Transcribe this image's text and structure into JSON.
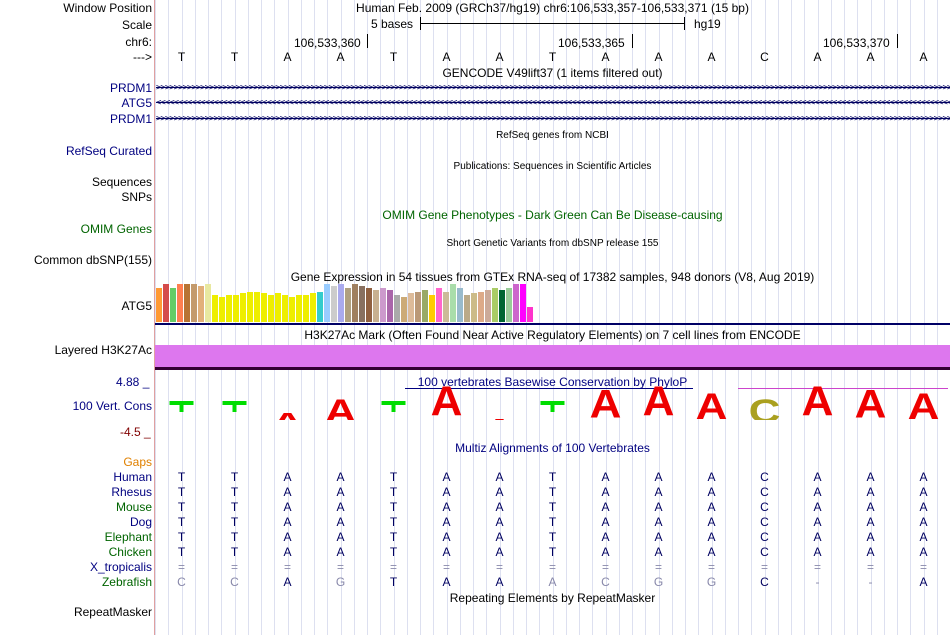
{
  "header": {
    "position_label": "Window Position",
    "assembly_text": "Human Feb. 2009 (GRCh37/hg19)   chr6:106,533,357-106,533,371 (15 bp)",
    "scale_label": "Scale",
    "scale_text": "5 bases",
    "scale_db": "hg19",
    "chrom_label": "chr6:",
    "coords": [
      "106,533,360",
      "106,533,365",
      "106,533,370"
    ],
    "strand_label": "--->"
  },
  "sequence": [
    "T",
    "T",
    "A",
    "A",
    "T",
    "A",
    "A",
    "T",
    "A",
    "A",
    "A",
    "C",
    "A",
    "A",
    "A"
  ],
  "tracks": {
    "gencode_title": "GENCODE V49lift37 (1 items filtered out)",
    "gencode_items": [
      "PRDM1",
      "ATG5",
      "PRDM1"
    ],
    "refseq_title": "RefSeq genes from NCBI",
    "refseq_label": "RefSeq Curated",
    "pubs_title": "Publications: Sequences in Scientific Articles",
    "pubs_label": "Sequences",
    "snps_label": "SNPs",
    "omim_title": "OMIM Gene Phenotypes - Dark Green Can Be Disease-causing",
    "omim_label": "OMIM Genes",
    "dbsnp_title": "Short Genetic Variants from dbSNP release 155",
    "dbsnp_label": "Common dbSNP(155)",
    "gtex_title": "Gene Expression in 54 tissues from GTEx RNA-seq of 17382 samples, 948 donors (V8, Aug 2019)",
    "gtex_label": "ATG5",
    "h3k_title": "H3K27Ac Mark (Often Found Near Active Regulatory Elements) on 7 cell lines from ENCODE",
    "h3k_label": "Layered H3K27Ac",
    "cons_title": "100 vertebrates Basewise Conservation by PhyloP",
    "cons_label": "100 Vert. Cons",
    "cons_max": "4.88 _",
    "cons_min": "-4.5 _",
    "multiz_title": "Multiz Alignments of 100 Vertebrates",
    "gaps_label": "Gaps",
    "repeat_title": "Repeating Elements by RepeatMasker",
    "repeat_label": "RepeatMasker"
  },
  "gtex_values": [
    0.9,
    1,
    0.9,
    1,
    1,
    1,
    0.95,
    1,
    0.7,
    0.65,
    0.7,
    0.7,
    0.75,
    0.8,
    0.8,
    0.75,
    0.7,
    0.75,
    0.7,
    0.65,
    0.7,
    0.7,
    0.75,
    0.8,
    1,
    0.95,
    1,
    0.9,
    1,
    0.95,
    0.9,
    0.85,
    0.9,
    0.85,
    0.7,
    0.65,
    0.75,
    0.8,
    0.85,
    0.7,
    0.9,
    0.8,
    1,
    0.9,
    0.7,
    0.75,
    0.8,
    0.85,
    0.9,
    0.85,
    0.9,
    1,
    1,
    0.4
  ],
  "gtex_colors": [
    "#ff9933",
    "#d44b4b",
    "#66cc66",
    "#ff7f50",
    "#b87333",
    "#c49a6c",
    "#e2b07a",
    "#e8e8a0",
    "#eeee00",
    "#eeee00",
    "#eeee00",
    "#eeee00",
    "#eeee00",
    "#eeee00",
    "#eeee00",
    "#eeee00",
    "#eeee00",
    "#eeee00",
    "#eeee00",
    "#eeee00",
    "#eeee00",
    "#eeee00",
    "#eeee00",
    "#33cccc",
    "#99ccff",
    "#cccccc",
    "#aaaaee",
    "#b0a080",
    "#a08060",
    "#887060",
    "#906040",
    "#c8b090",
    "#cc99cc",
    "#aa66aa",
    "#aaaaaa",
    "#ccaa77",
    "#ddbb99",
    "#bb9977",
    "#99aa66",
    "#ffcc00",
    "#ff66cc",
    "#ccbb99",
    "#aaddaa",
    "#99bbcc",
    "#bbaa88",
    "#ccbb88",
    "#ddaa88",
    "#ccaa99",
    "#aacc66",
    "#006633",
    "#99cc99",
    "#cc66cc",
    "#ff00ff",
    "#ff33cc"
  ],
  "cons_heights": [
    0.15,
    0.15,
    0.55,
    0.75,
    0.15,
    0.95,
    0.45,
    0.15,
    0.9,
    0.95,
    0.85,
    0.75,
    0.95,
    0.9,
    0.85
  ],
  "species": [
    {
      "name": "Human",
      "bases": [
        "T",
        "T",
        "A",
        "A",
        "T",
        "A",
        "A",
        "T",
        "A",
        "A",
        "A",
        "C",
        "A",
        "A",
        "A"
      ]
    },
    {
      "name": "Rhesus",
      "bases": [
        "T",
        "T",
        "A",
        "A",
        "T",
        "A",
        "A",
        "T",
        "A",
        "A",
        "A",
        "C",
        "A",
        "A",
        "A"
      ]
    },
    {
      "name": "Mouse",
      "bases": [
        "T",
        "T",
        "A",
        "A",
        "T",
        "A",
        "A",
        "T",
        "A",
        "A",
        "A",
        "C",
        "A",
        "A",
        "A"
      ]
    },
    {
      "name": "Dog",
      "bases": [
        "T",
        "T",
        "A",
        "A",
        "T",
        "A",
        "A",
        "T",
        "A",
        "A",
        "A",
        "C",
        "A",
        "A",
        "A"
      ]
    },
    {
      "name": "Elephant",
      "bases": [
        "T",
        "T",
        "A",
        "A",
        "T",
        "A",
        "A",
        "T",
        "A",
        "A",
        "A",
        "C",
        "A",
        "A",
        "A"
      ]
    },
    {
      "name": "Chicken",
      "bases": [
        "T",
        "T",
        "A",
        "A",
        "T",
        "A",
        "A",
        "T",
        "A",
        "A",
        "A",
        "C",
        "A",
        "A",
        "A"
      ]
    },
    {
      "name": "X_tropicalis",
      "bases": [
        "=",
        "=",
        "=",
        "=",
        "=",
        "=",
        "=",
        "=",
        "=",
        "=",
        "=",
        "=",
        "=",
        "=",
        "="
      ]
    },
    {
      "name": "Zebrafish",
      "bases": [
        "C",
        "C",
        "A",
        "G",
        "T",
        "A",
        "A",
        "A",
        "C",
        "G",
        "G",
        "C",
        "-",
        "-",
        "A"
      ]
    }
  ],
  "species_colors": [
    "#000080",
    "#000080",
    "#006400",
    "#000080",
    "#006400",
    "#006400",
    "#000080",
    "#006400"
  ],
  "zebrafish_match": [
    false,
    false,
    true,
    false,
    true,
    true,
    true,
    false,
    false,
    false,
    false,
    true,
    false,
    false,
    true
  ]
}
